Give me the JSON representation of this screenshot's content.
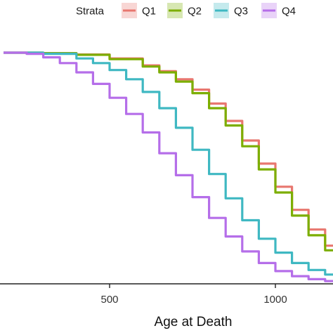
{
  "chart_data": {
    "type": "line",
    "title": "",
    "xlabel": "Age at Death",
    "ylabel": "",
    "xlim": [
      180,
      1200
    ],
    "ylim": [
      0,
      1
    ],
    "x_ticks": [
      500,
      1000
    ],
    "x_tick_labels": [
      "500",
      "1000"
    ],
    "grid": false,
    "legend": {
      "title": "Strata",
      "placement": "top",
      "entries": [
        "Q1",
        "Q2",
        "Q3",
        "Q4"
      ]
    },
    "series": [
      {
        "name": "Q1",
        "color": "#e8776f",
        "x": [
          180,
          300,
          400,
          500,
          600,
          650,
          700,
          750,
          800,
          850,
          900,
          950,
          1000,
          1050,
          1100,
          1150,
          1200
        ],
        "y": [
          1.0,
          0.998,
          0.992,
          0.975,
          0.945,
          0.92,
          0.885,
          0.84,
          0.78,
          0.705,
          0.62,
          0.52,
          0.42,
          0.32,
          0.235,
          0.165,
          0.115
        ]
      },
      {
        "name": "Q2",
        "color": "#7cae00",
        "x": [
          180,
          300,
          400,
          500,
          600,
          650,
          700,
          750,
          800,
          850,
          900,
          950,
          1000,
          1050,
          1100,
          1150,
          1200
        ],
        "y": [
          1.0,
          0.998,
          0.991,
          0.972,
          0.94,
          0.915,
          0.875,
          0.825,
          0.76,
          0.685,
          0.595,
          0.495,
          0.395,
          0.295,
          0.21,
          0.145,
          0.1
        ]
      },
      {
        "name": "Q3",
        "color": "#3fb8c2",
        "x": [
          180,
          300,
          400,
          450,
          500,
          550,
          600,
          650,
          700,
          750,
          800,
          850,
          900,
          950,
          1000,
          1050,
          1100,
          1150,
          1200
        ],
        "y": [
          1.0,
          0.995,
          0.975,
          0.955,
          0.925,
          0.885,
          0.83,
          0.76,
          0.675,
          0.58,
          0.475,
          0.37,
          0.275,
          0.195,
          0.135,
          0.09,
          0.06,
          0.04,
          0.028
        ]
      },
      {
        "name": "Q4",
        "color": "#b56ee9",
        "x": [
          180,
          250,
          300,
          350,
          400,
          450,
          500,
          550,
          600,
          650,
          700,
          750,
          800,
          850,
          900,
          950,
          1000,
          1050,
          1100,
          1150,
          1200
        ],
        "y": [
          1.0,
          0.995,
          0.98,
          0.955,
          0.915,
          0.865,
          0.805,
          0.735,
          0.655,
          0.565,
          0.47,
          0.375,
          0.285,
          0.205,
          0.14,
          0.09,
          0.055,
          0.033,
          0.02,
          0.012,
          0.008
        ]
      }
    ]
  }
}
